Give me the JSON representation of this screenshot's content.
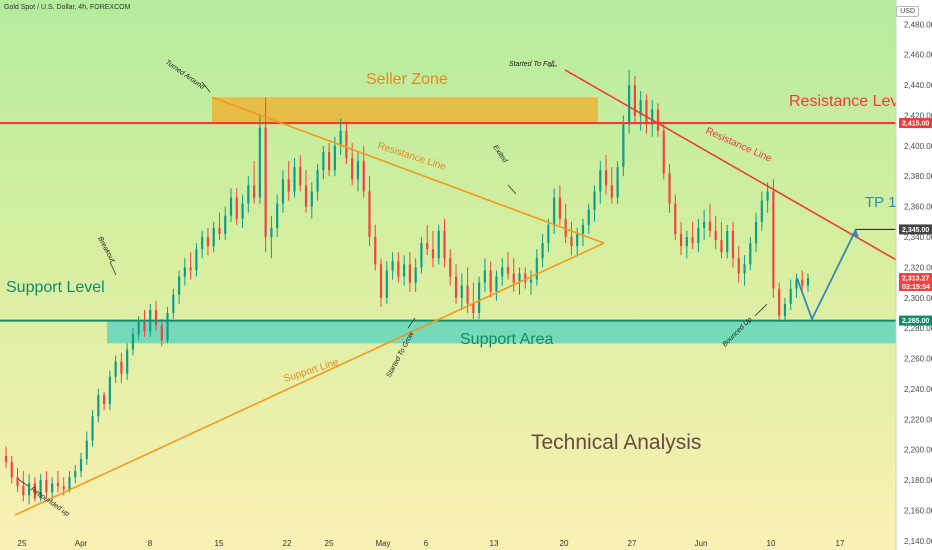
{
  "header": {
    "symbol_title": "Gold Spot / U.S. Dollar, 4h, FOREXCOM",
    "currency": "USD"
  },
  "chart_data": {
    "type": "candlestick",
    "title": "Technical Analysis",
    "y_axis": {
      "ylim": [
        2134,
        2496
      ],
      "ticks": [
        2140,
        2160,
        2180,
        2200,
        2220,
        2240,
        2260,
        2280,
        2300,
        2320,
        2340,
        2360,
        2380,
        2400,
        2420,
        2440,
        2460,
        2480
      ]
    },
    "x_ticks": [
      "25",
      "Apr",
      "8",
      "15",
      "22",
      "25",
      "May",
      "6",
      "13",
      "20",
      "27",
      "Jun",
      "10",
      "17"
    ],
    "levels": {
      "resistance_level": {
        "label": "Resistance Level",
        "price": 2415.0
      },
      "support_level": {
        "label": "Support Level",
        "price": 2285.0
      },
      "tp1": {
        "label": "TP 1",
        "price": 2345.0
      }
    },
    "zones": {
      "seller_zone": {
        "label": "Seller Zone",
        "top": 2432,
        "bottom": 2415
      },
      "support_area": {
        "label": "Support Area",
        "top": 2285,
        "bottom": 2270
      }
    },
    "trendlines": {
      "resistance_line_1": "Resistance Line",
      "support_line": "Support Line",
      "resistance_line_2": "Resistance Line"
    },
    "annotations": [
      "Rebounded up",
      "Breakout",
      "Turned Around",
      "Started To Grow",
      "Exited",
      "Started To Fall",
      "Bounced Up"
    ],
    "price_tags": {
      "resistance": "2,415.00",
      "tp": "2,345.00",
      "current": "2,313.27",
      "countdown": "03:15:54",
      "support": "2,285.00"
    },
    "colors": {
      "up": "#0f9d8a",
      "down": "#ef4444",
      "resistance": "#ee3b3b",
      "support": "#138b6a",
      "orange": "#f39a1e",
      "zone": "#f1ac2a",
      "support_zone": "#62d6bd",
      "tp_arrow": "#2f8eb6"
    },
    "candles": [
      {
        "o": 2196,
        "h": 2202,
        "l": 2188,
        "c": 2192
      },
      {
        "o": 2192,
        "h": 2196,
        "l": 2178,
        "c": 2182
      },
      {
        "o": 2182,
        "h": 2188,
        "l": 2172,
        "c": 2176
      },
      {
        "o": 2176,
        "h": 2186,
        "l": 2166,
        "c": 2170
      },
      {
        "o": 2170,
        "h": 2184,
        "l": 2164,
        "c": 2178
      },
      {
        "o": 2178,
        "h": 2182,
        "l": 2166,
        "c": 2168
      },
      {
        "o": 2168,
        "h": 2184,
        "l": 2166,
        "c": 2180
      },
      {
        "o": 2180,
        "h": 2186,
        "l": 2168,
        "c": 2172
      },
      {
        "o": 2172,
        "h": 2182,
        "l": 2166,
        "c": 2178
      },
      {
        "o": 2178,
        "h": 2186,
        "l": 2172,
        "c": 2176
      },
      {
        "o": 2176,
        "h": 2182,
        "l": 2170,
        "c": 2174
      },
      {
        "o": 2174,
        "h": 2186,
        "l": 2172,
        "c": 2182
      },
      {
        "o": 2182,
        "h": 2190,
        "l": 2178,
        "c": 2186
      },
      {
        "o": 2186,
        "h": 2198,
        "l": 2182,
        "c": 2194
      },
      {
        "o": 2194,
        "h": 2212,
        "l": 2190,
        "c": 2206
      },
      {
        "o": 2206,
        "h": 2226,
        "l": 2202,
        "c": 2222
      },
      {
        "o": 2222,
        "h": 2240,
        "l": 2218,
        "c": 2236
      },
      {
        "o": 2236,
        "h": 2238,
        "l": 2226,
        "c": 2230
      },
      {
        "o": 2230,
        "h": 2252,
        "l": 2226,
        "c": 2248
      },
      {
        "o": 2248,
        "h": 2262,
        "l": 2244,
        "c": 2258
      },
      {
        "o": 2258,
        "h": 2264,
        "l": 2244,
        "c": 2250
      },
      {
        "o": 2250,
        "h": 2270,
        "l": 2246,
        "c": 2266
      },
      {
        "o": 2266,
        "h": 2280,
        "l": 2262,
        "c": 2276
      },
      {
        "o": 2276,
        "h": 2288,
        "l": 2272,
        "c": 2284
      },
      {
        "o": 2284,
        "h": 2292,
        "l": 2274,
        "c": 2278
      },
      {
        "o": 2278,
        "h": 2296,
        "l": 2274,
        "c": 2292
      },
      {
        "o": 2292,
        "h": 2298,
        "l": 2278,
        "c": 2282
      },
      {
        "o": 2282,
        "h": 2286,
        "l": 2268,
        "c": 2272
      },
      {
        "o": 2272,
        "h": 2294,
        "l": 2270,
        "c": 2290
      },
      {
        "o": 2290,
        "h": 2306,
        "l": 2286,
        "c": 2302
      },
      {
        "o": 2302,
        "h": 2318,
        "l": 2296,
        "c": 2314
      },
      {
        "o": 2314,
        "h": 2326,
        "l": 2308,
        "c": 2320
      },
      {
        "o": 2320,
        "h": 2330,
        "l": 2312,
        "c": 2318
      },
      {
        "o": 2318,
        "h": 2336,
        "l": 2314,
        "c": 2332
      },
      {
        "o": 2332,
        "h": 2344,
        "l": 2326,
        "c": 2340
      },
      {
        "o": 2340,
        "h": 2346,
        "l": 2328,
        "c": 2334
      },
      {
        "o": 2334,
        "h": 2350,
        "l": 2330,
        "c": 2346
      },
      {
        "o": 2346,
        "h": 2356,
        "l": 2338,
        "c": 2342
      },
      {
        "o": 2342,
        "h": 2360,
        "l": 2338,
        "c": 2354
      },
      {
        "o": 2354,
        "h": 2372,
        "l": 2350,
        "c": 2366
      },
      {
        "o": 2366,
        "h": 2372,
        "l": 2348,
        "c": 2352
      },
      {
        "o": 2352,
        "h": 2368,
        "l": 2346,
        "c": 2362
      },
      {
        "o": 2362,
        "h": 2380,
        "l": 2356,
        "c": 2374
      },
      {
        "o": 2374,
        "h": 2390,
        "l": 2362,
        "c": 2366
      },
      {
        "o": 2366,
        "h": 2420,
        "l": 2362,
        "c": 2412
      },
      {
        "o": 2412,
        "h": 2432,
        "l": 2330,
        "c": 2340
      },
      {
        "o": 2340,
        "h": 2354,
        "l": 2326,
        "c": 2346
      },
      {
        "o": 2346,
        "h": 2368,
        "l": 2340,
        "c": 2362
      },
      {
        "o": 2362,
        "h": 2384,
        "l": 2356,
        "c": 2378
      },
      {
        "o": 2378,
        "h": 2390,
        "l": 2364,
        "c": 2370
      },
      {
        "o": 2370,
        "h": 2392,
        "l": 2366,
        "c": 2386
      },
      {
        "o": 2386,
        "h": 2394,
        "l": 2370,
        "c": 2374
      },
      {
        "o": 2374,
        "h": 2384,
        "l": 2356,
        "c": 2360
      },
      {
        "o": 2360,
        "h": 2376,
        "l": 2352,
        "c": 2370
      },
      {
        "o": 2370,
        "h": 2388,
        "l": 2364,
        "c": 2384
      },
      {
        "o": 2384,
        "h": 2400,
        "l": 2378,
        "c": 2396
      },
      {
        "o": 2396,
        "h": 2402,
        "l": 2380,
        "c": 2384
      },
      {
        "o": 2384,
        "h": 2406,
        "l": 2380,
        "c": 2400
      },
      {
        "o": 2400,
        "h": 2418,
        "l": 2394,
        "c": 2410
      },
      {
        "o": 2410,
        "h": 2416,
        "l": 2388,
        "c": 2392
      },
      {
        "o": 2392,
        "h": 2402,
        "l": 2374,
        "c": 2378
      },
      {
        "o": 2378,
        "h": 2396,
        "l": 2370,
        "c": 2390
      },
      {
        "o": 2390,
        "h": 2400,
        "l": 2366,
        "c": 2370
      },
      {
        "o": 2370,
        "h": 2380,
        "l": 2334,
        "c": 2340
      },
      {
        "o": 2340,
        "h": 2348,
        "l": 2318,
        "c": 2322
      },
      {
        "o": 2322,
        "h": 2326,
        "l": 2294,
        "c": 2300
      },
      {
        "o": 2300,
        "h": 2324,
        "l": 2296,
        "c": 2318
      },
      {
        "o": 2318,
        "h": 2330,
        "l": 2312,
        "c": 2324
      },
      {
        "o": 2324,
        "h": 2330,
        "l": 2310,
        "c": 2314
      },
      {
        "o": 2314,
        "h": 2328,
        "l": 2308,
        "c": 2322
      },
      {
        "o": 2322,
        "h": 2330,
        "l": 2304,
        "c": 2310
      },
      {
        "o": 2310,
        "h": 2326,
        "l": 2304,
        "c": 2320
      },
      {
        "o": 2320,
        "h": 2340,
        "l": 2316,
        "c": 2336
      },
      {
        "o": 2336,
        "h": 2348,
        "l": 2328,
        "c": 2332
      },
      {
        "o": 2332,
        "h": 2344,
        "l": 2320,
        "c": 2326
      },
      {
        "o": 2326,
        "h": 2348,
        "l": 2322,
        "c": 2344
      },
      {
        "o": 2344,
        "h": 2352,
        "l": 2320,
        "c": 2326
      },
      {
        "o": 2326,
        "h": 2332,
        "l": 2308,
        "c": 2314
      },
      {
        "o": 2314,
        "h": 2322,
        "l": 2296,
        "c": 2300
      },
      {
        "o": 2300,
        "h": 2316,
        "l": 2292,
        "c": 2308
      },
      {
        "o": 2308,
        "h": 2320,
        "l": 2290,
        "c": 2296
      },
      {
        "o": 2296,
        "h": 2310,
        "l": 2286,
        "c": 2290
      },
      {
        "o": 2290,
        "h": 2314,
        "l": 2286,
        "c": 2310
      },
      {
        "o": 2310,
        "h": 2326,
        "l": 2304,
        "c": 2318
      },
      {
        "o": 2318,
        "h": 2324,
        "l": 2300,
        "c": 2304
      },
      {
        "o": 2304,
        "h": 2318,
        "l": 2298,
        "c": 2314
      },
      {
        "o": 2314,
        "h": 2326,
        "l": 2308,
        "c": 2320
      },
      {
        "o": 2320,
        "h": 2330,
        "l": 2312,
        "c": 2316
      },
      {
        "o": 2316,
        "h": 2326,
        "l": 2304,
        "c": 2310
      },
      {
        "o": 2310,
        "h": 2320,
        "l": 2302,
        "c": 2316
      },
      {
        "o": 2316,
        "h": 2320,
        "l": 2306,
        "c": 2310
      },
      {
        "o": 2310,
        "h": 2318,
        "l": 2302,
        "c": 2312
      },
      {
        "o": 2312,
        "h": 2332,
        "l": 2308,
        "c": 2326
      },
      {
        "o": 2326,
        "h": 2342,
        "l": 2320,
        "c": 2336
      },
      {
        "o": 2336,
        "h": 2352,
        "l": 2330,
        "c": 2348
      },
      {
        "o": 2348,
        "h": 2372,
        "l": 2342,
        "c": 2366
      },
      {
        "o": 2366,
        "h": 2374,
        "l": 2348,
        "c": 2352
      },
      {
        "o": 2352,
        "h": 2362,
        "l": 2336,
        "c": 2340
      },
      {
        "o": 2340,
        "h": 2350,
        "l": 2328,
        "c": 2334
      },
      {
        "o": 2334,
        "h": 2346,
        "l": 2328,
        "c": 2342
      },
      {
        "o": 2342,
        "h": 2352,
        "l": 2334,
        "c": 2348
      },
      {
        "o": 2348,
        "h": 2362,
        "l": 2342,
        "c": 2358
      },
      {
        "o": 2358,
        "h": 2374,
        "l": 2350,
        "c": 2370
      },
      {
        "o": 2370,
        "h": 2390,
        "l": 2362,
        "c": 2384
      },
      {
        "o": 2384,
        "h": 2394,
        "l": 2368,
        "c": 2374
      },
      {
        "o": 2374,
        "h": 2386,
        "l": 2362,
        "c": 2366
      },
      {
        "o": 2366,
        "h": 2390,
        "l": 2362,
        "c": 2386
      },
      {
        "o": 2386,
        "h": 2420,
        "l": 2380,
        "c": 2414
      },
      {
        "o": 2414,
        "h": 2450,
        "l": 2408,
        "c": 2440
      },
      {
        "o": 2440,
        "h": 2446,
        "l": 2414,
        "c": 2420
      },
      {
        "o": 2420,
        "h": 2436,
        "l": 2410,
        "c": 2430
      },
      {
        "o": 2430,
        "h": 2434,
        "l": 2408,
        "c": 2414
      },
      {
        "o": 2414,
        "h": 2430,
        "l": 2406,
        "c": 2424
      },
      {
        "o": 2424,
        "h": 2428,
        "l": 2406,
        "c": 2410
      },
      {
        "o": 2410,
        "h": 2416,
        "l": 2378,
        "c": 2382
      },
      {
        "o": 2382,
        "h": 2388,
        "l": 2356,
        "c": 2362
      },
      {
        "o": 2362,
        "h": 2368,
        "l": 2338,
        "c": 2342
      },
      {
        "o": 2342,
        "h": 2350,
        "l": 2328,
        "c": 2334
      },
      {
        "o": 2334,
        "h": 2344,
        "l": 2326,
        "c": 2340
      },
      {
        "o": 2340,
        "h": 2350,
        "l": 2332,
        "c": 2336
      },
      {
        "o": 2336,
        "h": 2352,
        "l": 2330,
        "c": 2346
      },
      {
        "o": 2346,
        "h": 2358,
        "l": 2338,
        "c": 2350
      },
      {
        "o": 2350,
        "h": 2362,
        "l": 2340,
        "c": 2344
      },
      {
        "o": 2344,
        "h": 2354,
        "l": 2332,
        "c": 2338
      },
      {
        "o": 2338,
        "h": 2350,
        "l": 2326,
        "c": 2330
      },
      {
        "o": 2330,
        "h": 2348,
        "l": 2326,
        "c": 2344
      },
      {
        "o": 2344,
        "h": 2350,
        "l": 2320,
        "c": 2326
      },
      {
        "o": 2326,
        "h": 2334,
        "l": 2310,
        "c": 2316
      },
      {
        "o": 2316,
        "h": 2328,
        "l": 2308,
        "c": 2322
      },
      {
        "o": 2322,
        "h": 2340,
        "l": 2318,
        "c": 2336
      },
      {
        "o": 2336,
        "h": 2356,
        "l": 2330,
        "c": 2350
      },
      {
        "o": 2350,
        "h": 2370,
        "l": 2344,
        "c": 2364
      },
      {
        "o": 2364,
        "h": 2376,
        "l": 2356,
        "c": 2370
      },
      {
        "o": 2370,
        "h": 2378,
        "l": 2300,
        "c": 2306
      },
      {
        "o": 2306,
        "h": 2310,
        "l": 2284,
        "c": 2288
      },
      {
        "o": 2288,
        "h": 2300,
        "l": 2284,
        "c": 2296
      },
      {
        "o": 2296,
        "h": 2312,
        "l": 2292,
        "c": 2306
      },
      {
        "o": 2306,
        "h": 2316,
        "l": 2300,
        "c": 2312
      },
      {
        "o": 2312,
        "h": 2318,
        "l": 2304,
        "c": 2308
      },
      {
        "o": 2308,
        "h": 2316,
        "l": 2304,
        "c": 2313
      }
    ]
  }
}
